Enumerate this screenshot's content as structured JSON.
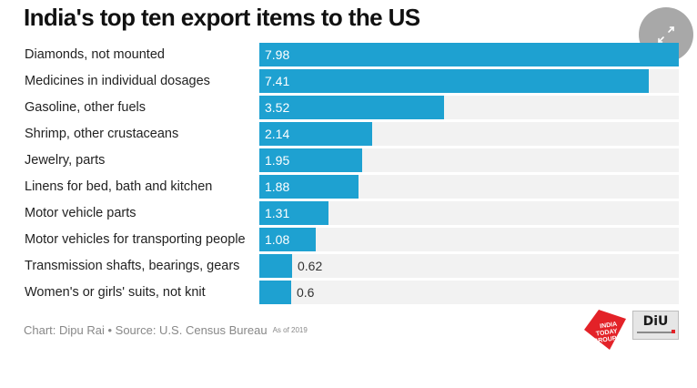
{
  "title": "India's top ten export items to the US",
  "chart_data": {
    "type": "bar",
    "orientation": "horizontal",
    "title": "India's top ten export items to the US",
    "categories": [
      "Diamonds, not mounted",
      "Medicines in individual dosages",
      "Gasoline, other fuels",
      "Shrimp, other crustaceans",
      "Jewelry, parts",
      "Linens for bed, bath and kitchen",
      "Motor vehicle parts",
      "Motor vehicles for transporting people",
      "Transmission shafts, bearings, gears",
      "Women's or girls' suits, not knit"
    ],
    "values": [
      7.98,
      7.41,
      3.52,
      2.14,
      1.95,
      1.88,
      1.31,
      1.08,
      0.62,
      0.6
    ],
    "value_labels": [
      "7.98",
      "7.41",
      "3.52",
      "2.14",
      "1.95",
      "1.88",
      "1.31",
      "1.08",
      "0.62",
      "0.6"
    ],
    "xlim": [
      0,
      7.98
    ],
    "xlabel": "",
    "ylabel": "",
    "grid": false,
    "bar_color": "#1ea1d1",
    "track_color": "#f2f2f2"
  },
  "footer": {
    "source": "Chart: Dipu Rai • Source: U.S. Census Bureau",
    "as_of": "As of 2019"
  },
  "logos": {
    "itg_text": [
      "INDIA",
      "TODAY",
      "GROUP"
    ],
    "diu_text": "DiU",
    "itg_color": "#e32228"
  },
  "expand_icon": "expand-icon"
}
